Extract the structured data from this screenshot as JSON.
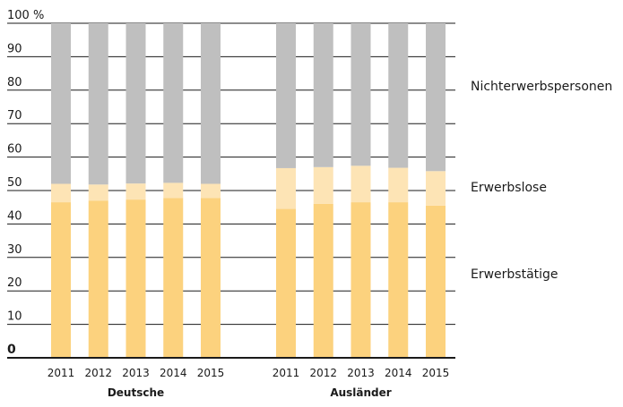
{
  "chart_data": {
    "type": "bar",
    "stacked": true,
    "ylim": [
      0,
      100
    ],
    "y_ticks": [
      "0",
      "10",
      "20",
      "30",
      "40",
      "50",
      "60",
      "70",
      "80",
      "90",
      "100 %"
    ],
    "grid": true,
    "legend_placement": "right",
    "groups": [
      {
        "name": "Deutsche",
        "categories": [
          "2011",
          "2012",
          "2013",
          "2014",
          "2015"
        ],
        "series": [
          {
            "name": "Erwerbstätige",
            "values": [
              46.5,
              47.0,
              47.3,
              47.8,
              47.8
            ]
          },
          {
            "name": "Erwerbslose",
            "values": [
              5.5,
              4.8,
              4.8,
              4.5,
              4.2
            ]
          },
          {
            "name": "Nichterwerbspersonen",
            "values": [
              48.0,
              48.2,
              47.9,
              47.7,
              48.0
            ]
          }
        ]
      },
      {
        "name": "Ausländer",
        "categories": [
          "2011",
          "2012",
          "2013",
          "2014",
          "2015"
        ],
        "series": [
          {
            "name": "Erwerbstätige",
            "values": [
              44.5,
              46.0,
              46.5,
              46.5,
              45.5
            ]
          },
          {
            "name": "Erwerbslose",
            "values": [
              12.2,
              11.0,
              10.9,
              10.3,
              10.3
            ]
          },
          {
            "name": "Nichterwerbspersonen",
            "values": [
              43.3,
              43.0,
              42.6,
              43.2,
              44.2
            ]
          }
        ]
      }
    ],
    "legend": [
      "Nichterwerbspersonen",
      "Erwerbslose",
      "Erwerbstätige"
    ],
    "colors": {
      "Erwerbstätige": "#fcd27e",
      "Erwerbslose": "#fde4b5",
      "Nichterwerbspersonen": "#bfbfbf"
    }
  }
}
